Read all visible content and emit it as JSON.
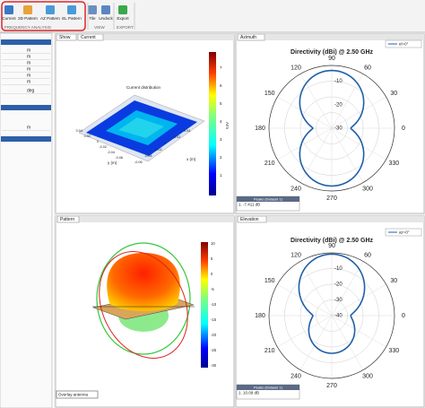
{
  "toolstrip": {
    "buttons": [
      "Current",
      "3D Pattern",
      "AZ Pattern",
      "EL Pattern",
      "Tile",
      "Undock",
      "Export"
    ],
    "sections": [
      "FREQUENCY ANALYSIS",
      "VIEW",
      "EXPORT"
    ]
  },
  "left_panel": {
    "units": [
      "m",
      "m",
      "m",
      "m",
      "m",
      "m",
      "deg",
      "m"
    ]
  },
  "current_pane": {
    "tabs": [
      "Show",
      "Current"
    ],
    "title": "Current distribution",
    "xlabel": "x (m)",
    "ylabel": "y (m)",
    "yticks": [
      "0.04",
      "0.02",
      "0",
      "-0.02",
      "-0.04",
      "-0.06"
    ],
    "xticks": [
      "-0.06",
      "-0.04",
      "-0.02",
      "0",
      "0.02",
      "0.04"
    ],
    "colorbar_label": "A/m",
    "colorbar_ticks": [
      "7",
      "6",
      "5",
      "4",
      "3",
      "2",
      "1"
    ]
  },
  "azimuth_pane": {
    "tab": "Azimuth",
    "title": "Directivity (dBi) @ 2.50 GHz",
    "legend": "el=0°",
    "angle_labels": [
      "0",
      "30",
      "60",
      "90",
      "120",
      "150",
      "180",
      "210",
      "240",
      "270",
      "300",
      "330"
    ],
    "radial_labels": [
      "-10",
      "-20",
      "-30"
    ],
    "peaks_title": "Peaks (Dataset 1)",
    "peaks_value": "1. -7.411 dB"
  },
  "pattern_pane": {
    "tab": "Pattern",
    "colorbar_ticks": [
      "10",
      "5",
      "0",
      "-5",
      "-10",
      "-15",
      "-20",
      "-25",
      "-30"
    ],
    "overlay": "Overlay antenna"
  },
  "elevation_pane": {
    "tab": "Elevation",
    "title": "Directivity (dBi) @ 2.50 GHz",
    "legend": "az=0°",
    "angle_labels": [
      "0",
      "30",
      "60",
      "90",
      "120",
      "150",
      "180",
      "210",
      "240",
      "270",
      "300",
      "330"
    ],
    "radial_labels": [
      "-10",
      "-20",
      "-30",
      "-40"
    ],
    "peaks_title": "Peaks (Dataset 1)",
    "peaks_value": "1. 10.09 dB"
  }
}
